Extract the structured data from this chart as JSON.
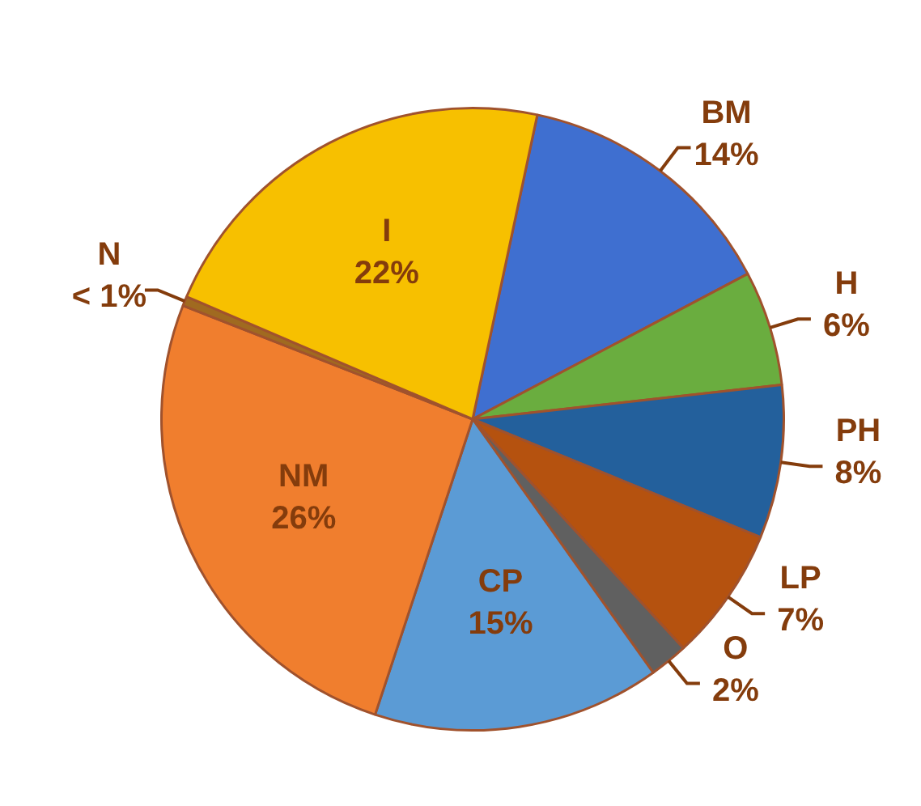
{
  "chart_data": {
    "type": "pie",
    "categories": [
      "BM",
      "H",
      "PH",
      "LP",
      "O",
      "CP",
      "NM",
      "N",
      "I"
    ],
    "values": [
      14,
      6,
      8,
      7,
      2,
      15,
      26,
      0.5,
      22
    ],
    "value_labels": [
      "14%",
      "6%",
      "8%",
      "7%",
      "2%",
      "15%",
      "26%",
      "< 1%",
      "22%"
    ],
    "colors": [
      "#3f6fd0",
      "#6aad3f",
      "#23609c",
      "#b5520f",
      "#606060",
      "#5b9bd5",
      "#f07e2e",
      "#a06a20",
      "#f7c000"
    ],
    "legend": false
  }
}
